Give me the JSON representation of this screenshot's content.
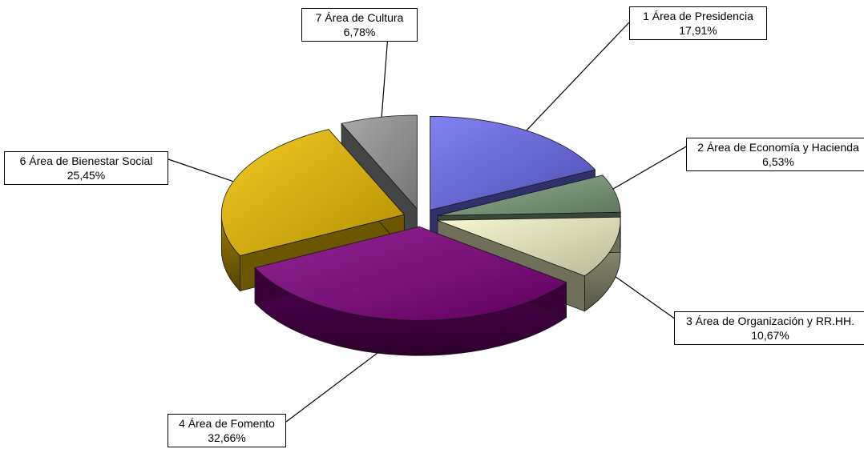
{
  "chart_data": {
    "type": "pie",
    "title": "",
    "slices": [
      {
        "label": "1 Área de Presidencia",
        "value": 17.91,
        "value_label": "17,91%",
        "color": "#6b6bf0"
      },
      {
        "label": "2 Área de Economía y Hacienda",
        "value": 6.53,
        "value_label": "6,53%",
        "color": "#7fa07f"
      },
      {
        "label": "3 Área de Organización y RR.HH.",
        "value": 10.67,
        "value_label": "10,67%",
        "color": "#f6f6c8"
      },
      {
        "label": "4 Área de Fomento",
        "value": 32.66,
        "value_label": "32,66%",
        "color": "#800080"
      },
      {
        "label": "6 Área de Bienestar Social",
        "value": 25.45,
        "value_label": "25,45%",
        "color": "#f0c000"
      },
      {
        "label": "7 Área de Cultura",
        "value": 6.78,
        "value_label": "6,78%",
        "color": "#9a9a9a"
      }
    ],
    "exploded": true,
    "three_d": true,
    "legend": "none",
    "data_labels": "callouts"
  }
}
